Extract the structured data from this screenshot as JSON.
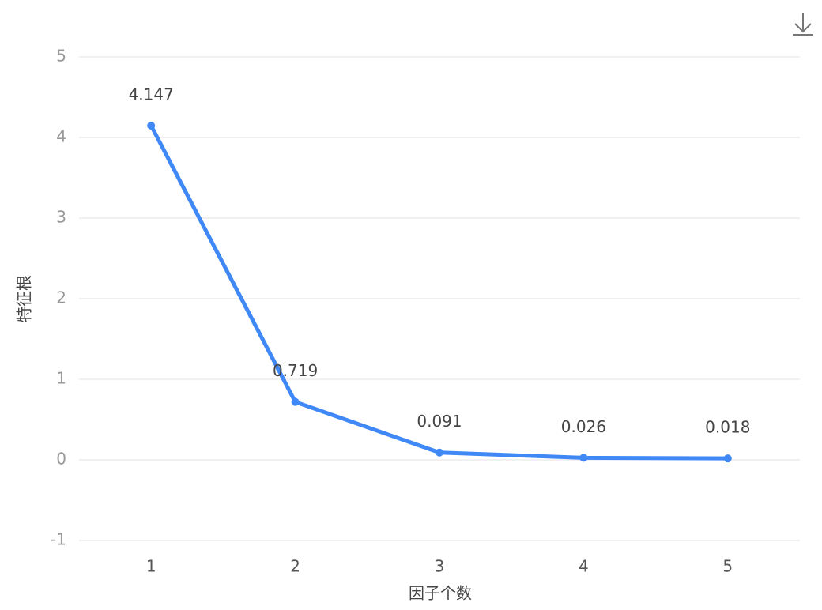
{
  "chart_data": {
    "type": "line",
    "x_label": "因子个数",
    "y_label": "特征根",
    "categories": [
      "1",
      "2",
      "3",
      "4",
      "5"
    ],
    "series": [
      {
        "name": "特征根",
        "color": "#3f88f5",
        "values": [
          4.147,
          0.719,
          0.091,
          0.026,
          0.018
        ]
      }
    ],
    "ylim": [
      -1,
      5
    ],
    "yticks": [
      -1,
      0,
      1,
      2,
      3,
      4,
      5
    ],
    "grid": true
  }
}
